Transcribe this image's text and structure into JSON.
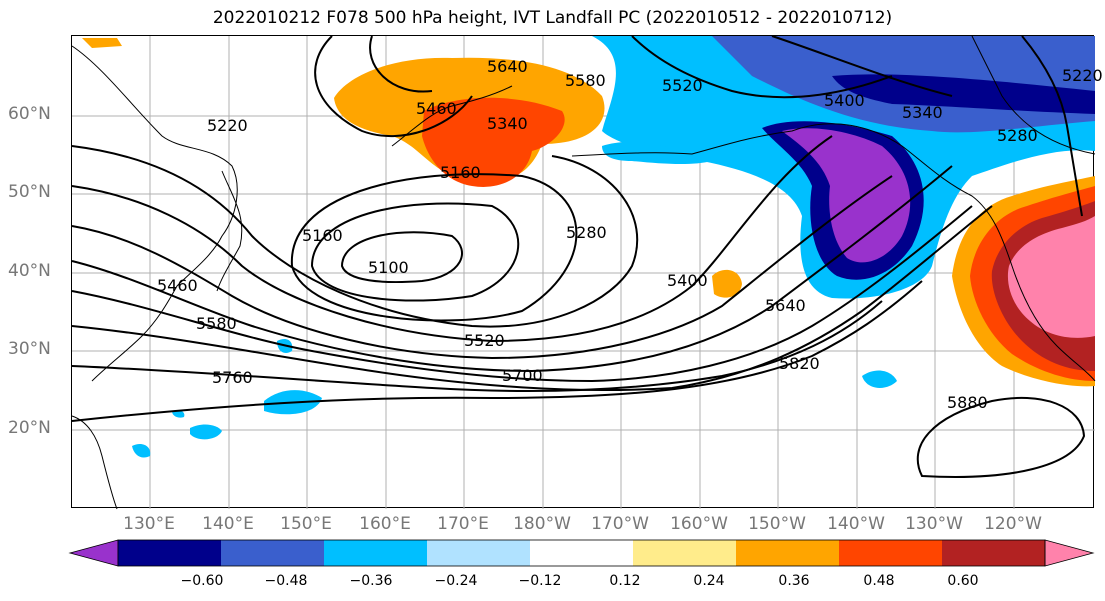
{
  "title": "2022010212 F078 500 hPa height, IVT Landfall PC (2022010512 - 2022010712)",
  "lat_labels": [
    "60°N",
    "50°N",
    "40°N",
    "30°N",
    "20°N"
  ],
  "lon_labels": [
    "130°E",
    "140°E",
    "150°E",
    "160°E",
    "170°E",
    "180°W",
    "170°W",
    "160°W",
    "150°W",
    "140°W",
    "130°W",
    "120°W"
  ],
  "contour_labels": [
    "5640",
    "5580",
    "5520",
    "5460",
    "5340",
    "5400",
    "5340",
    "5220",
    "5160",
    "5160",
    "5100",
    "5280",
    "5400",
    "5460",
    "5580",
    "5520",
    "5640",
    "5700",
    "5760",
    "5820",
    "5880",
    "5220",
    "5280"
  ],
  "colorbar": {
    "tick_labels": [
      "−0.60",
      "−0.48",
      "−0.36",
      "−0.24",
      "−0.12",
      "0.12",
      "0.24",
      "0.36",
      "0.48",
      "0.60"
    ],
    "colors": [
      "#9932cc",
      "#00008b",
      "#3a5fcd",
      "#00bfff",
      "#b0e2ff",
      "#ffffff",
      "#ffec8b",
      "#ffa500",
      "#ff4500",
      "#b22222",
      "#ff82ab"
    ]
  }
}
